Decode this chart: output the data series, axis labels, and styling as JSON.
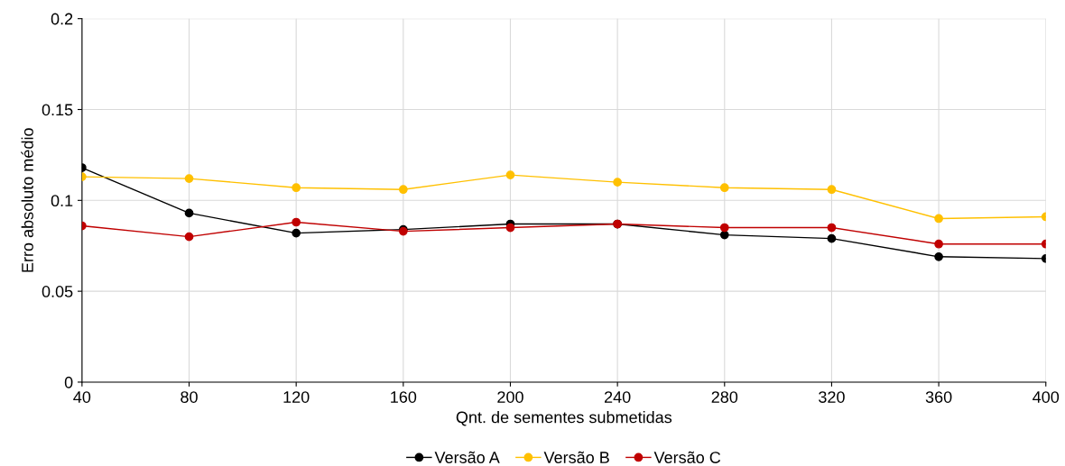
{
  "chart_data": {
    "type": "line",
    "xlabel": "Qnt. de sementes submetidas",
    "ylabel": "Erro absoluto médio",
    "x": [
      40,
      80,
      120,
      160,
      200,
      240,
      280,
      320,
      360,
      400
    ],
    "series": [
      {
        "name": "Versão A",
        "color": "#000000",
        "values": [
          0.118,
          0.093,
          0.082,
          0.084,
          0.087,
          0.087,
          0.081,
          0.079,
          0.069,
          0.068
        ]
      },
      {
        "name": "Versão B",
        "color": "#ffc000",
        "values": [
          0.113,
          0.112,
          0.107,
          0.106,
          0.114,
          0.11,
          0.107,
          0.106,
          0.09,
          0.091
        ]
      },
      {
        "name": "Versão C",
        "color": "#c00000",
        "values": [
          0.086,
          0.08,
          0.088,
          0.083,
          0.085,
          0.087,
          0.085,
          0.085,
          0.076,
          0.076
        ]
      }
    ],
    "xlim": [
      40,
      400
    ],
    "xticks": [
      40,
      80,
      120,
      160,
      200,
      240,
      280,
      320,
      360,
      400
    ],
    "ylim": [
      0,
      0.2
    ],
    "yticks": [
      0,
      0.05,
      0.1,
      0.15,
      0.2
    ],
    "grid": true,
    "legend": "bottom",
    "marker": "circle",
    "line_style": "solid"
  }
}
